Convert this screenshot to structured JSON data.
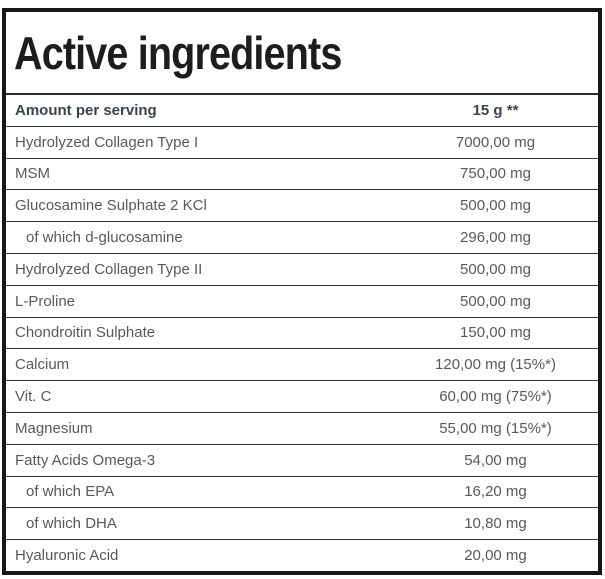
{
  "panel": {
    "title": "Active ingredients"
  },
  "table": {
    "header": {
      "label": "Amount per serving",
      "value": "15 g **"
    },
    "rows": [
      {
        "label": "Hydrolyzed Collagen Type I",
        "value": "7000,00 mg",
        "indent": false
      },
      {
        "label": "MSM",
        "value": "750,00 mg",
        "indent": false
      },
      {
        "label": "Glucosamine Sulphate 2 KCl",
        "value": "500,00 mg",
        "indent": false
      },
      {
        "label": "of which d-glucosamine",
        "value": "296,00 mg",
        "indent": true
      },
      {
        "label": "Hydrolyzed Collagen Type II",
        "value": "500,00 mg",
        "indent": false
      },
      {
        "label": "L-Proline",
        "value": "500,00 mg",
        "indent": false
      },
      {
        "label": "Chondroitin Sulphate",
        "value": "150,00 mg",
        "indent": false
      },
      {
        "label": "Calcium",
        "value": "120,00 mg (15%*)",
        "indent": false
      },
      {
        "label": "Vit. C",
        "value": "60,00 mg (75%*)",
        "indent": false
      },
      {
        "label": "Magnesium",
        "value": "55,00 mg (15%*)",
        "indent": false
      },
      {
        "label": "Fatty Acids Omega-3",
        "value": "54,00 mg",
        "indent": false
      },
      {
        "label": "of which EPA",
        "value": "16,20 mg",
        "indent": true
      },
      {
        "label": "of which DHA",
        "value": "10,80 mg",
        "indent": true
      },
      {
        "label": "Hyaluronic Acid",
        "value": "20,00 mg",
        "indent": false
      }
    ]
  },
  "colors": {
    "background": "#ffffff",
    "panel_border": "#171717",
    "row_separator": "#363636",
    "title_text": "#1d1d1b",
    "header_text": "#3e434b",
    "body_text": "#58595b"
  }
}
